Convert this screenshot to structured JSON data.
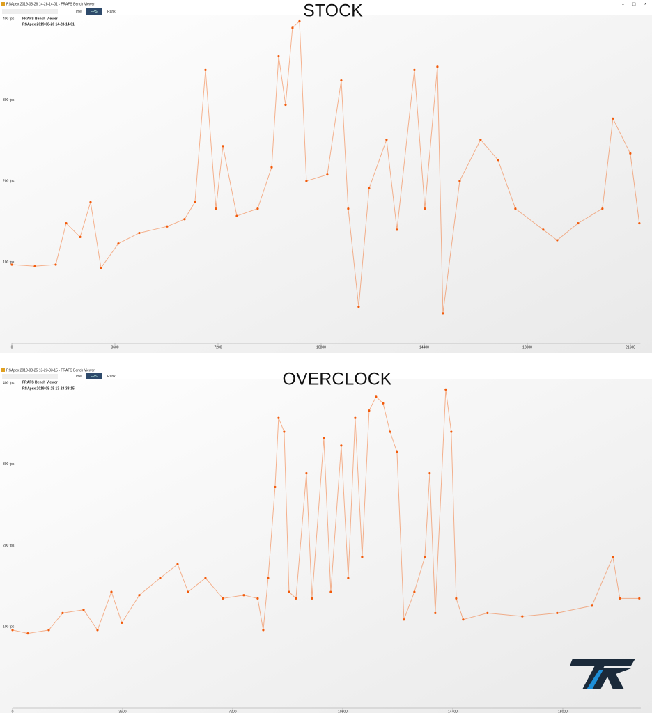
{
  "app_name": "FRAFS Bench Viewer",
  "toolbar": [
    "Time",
    "FPS",
    "Rank"
  ],
  "chart_data": [
    {
      "type": "scatter",
      "title": "STOCK",
      "window_title": "RSApex 2019-08-26 14-28-14-01 - FRAFS Bench Viewer",
      "x": [
        0,
        803,
        1532,
        1897,
        2383,
        2748,
        3113,
        3721,
        4451,
        5423,
        6031,
        6396,
        6761,
        7126,
        7369,
        7856,
        8585,
        9072,
        9315,
        9558,
        9801,
        10044,
        10287,
        11016,
        11503,
        11746,
        12111,
        12476,
        13084,
        13449,
        14057,
        14422,
        14860,
        15054,
        15638,
        16367,
        16975,
        17583,
        18556,
        19042,
        19772,
        20623,
        20988,
        21596,
        21912
      ],
      "series": [
        {
          "name": "RSApex 2019-08-26 14-28-14-01",
          "color": "#f25a0a",
          "values": [
            97,
            95,
            97,
            148,
            131,
            174,
            93,
            123,
            136,
            144,
            153,
            174,
            337,
            166,
            243,
            157,
            166,
            217,
            354,
            294,
            389,
            397,
            200,
            208,
            324,
            166,
            45,
            191,
            251,
            140,
            337,
            166,
            341,
            37,
            200,
            251,
            226,
            166,
            140,
            127,
            148,
            166,
            277,
            234,
            148
          ]
        }
      ],
      "xlim": [
        0,
        21950
      ],
      "xticks": [
        0,
        3600,
        7200,
        10800,
        14400,
        18000,
        21600
      ],
      "ylim": [
        0,
        400
      ],
      "yticks": [
        {
          "value": 100,
          "label": "100 fps"
        },
        {
          "value": 200,
          "label": "200 fps"
        },
        {
          "value": 300,
          "label": "300 fps"
        },
        {
          "value": 400,
          "label": "400 fps"
        }
      ]
    },
    {
      "type": "scatter",
      "title": "OVERCLOCK",
      "window_title": "RSApex 2019-08-25 13-23-33-15 - FRAFS Bench Viewer",
      "x": [
        0,
        501,
        1185,
        1640,
        2324,
        2779,
        3235,
        3576,
        4146,
        4829,
        5399,
        5741,
        6310,
        6880,
        7563,
        8019,
        8201,
        8360,
        8588,
        8702,
        8884,
        9044,
        9271,
        9613,
        9795,
        10182,
        10410,
        10752,
        10980,
        11208,
        11436,
        11663,
        11891,
        12119,
        12347,
        12575,
        12802,
        13144,
        13486,
        13645,
        13827,
        14169,
        14351,
        14511,
        14739,
        15536,
        16675,
        17814,
        18953,
        19636,
        19864,
        20502
      ],
      "series": [
        {
          "name": "RSApex 2019-08-25 13-23-33-15",
          "color": "#f25a0a",
          "values": [
            96,
            92,
            96,
            117,
            121,
            96,
            143,
            105,
            139,
            160,
            177,
            143,
            160,
            135,
            139,
            135,
            96,
            160,
            272,
            357,
            340,
            143,
            135,
            289,
            135,
            332,
            143,
            323,
            160,
            357,
            186,
            366,
            383,
            375,
            340,
            315,
            109,
            143,
            186,
            289,
            117,
            392,
            340,
            135,
            109,
            117,
            113,
            117,
            126,
            186,
            135,
            135
          ]
        }
      ],
      "xlim": [
        0,
        20550
      ],
      "xticks": [
        0,
        3600,
        7200,
        10800,
        14400,
        18000
      ],
      "ylim": [
        0,
        400
      ],
      "yticks": [
        {
          "value": 100,
          "label": "100 fps"
        },
        {
          "value": 200,
          "label": "200 fps"
        },
        {
          "value": 300,
          "label": "300 fps"
        },
        {
          "value": 400,
          "label": "400 fps"
        }
      ]
    }
  ]
}
